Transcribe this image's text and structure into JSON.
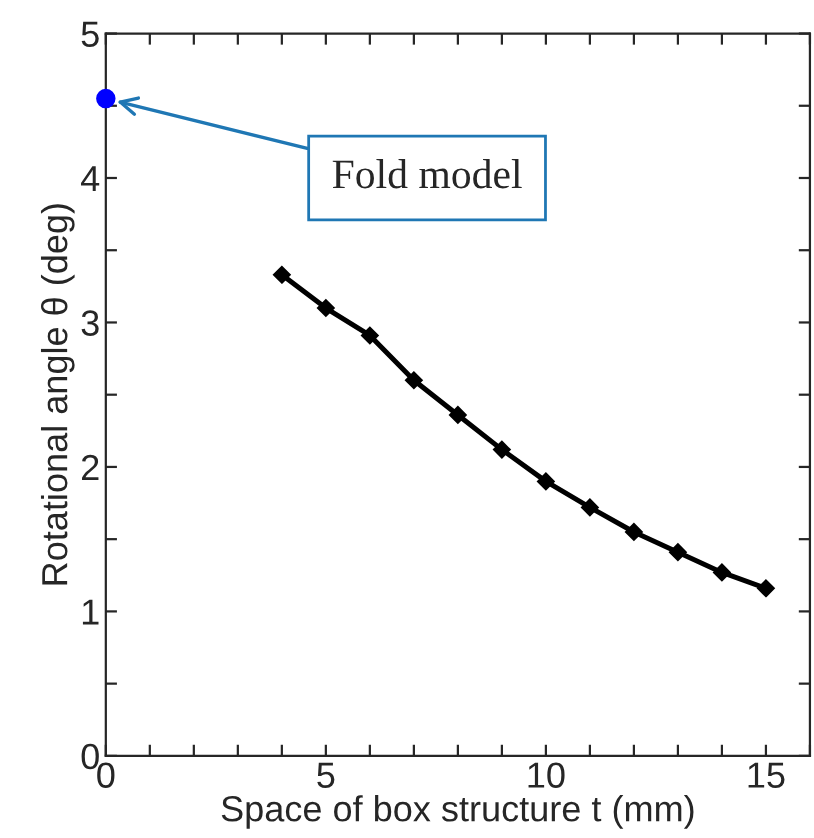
{
  "chart_data": {
    "type": "line",
    "xlabel": "Space of box structure t (mm)",
    "ylabel": "Rotational angle θ (deg)",
    "xlim": [
      0,
      16
    ],
    "ylim": [
      0,
      5
    ],
    "xticks": [
      0,
      {
        "value": 1,
        "label": null
      },
      {
        "value": 2,
        "label": null
      },
      {
        "value": 3,
        "label": null
      },
      {
        "value": 4,
        "label": null
      },
      5,
      {
        "value": 6,
        "label": null
      },
      {
        "value": 7,
        "label": null
      },
      {
        "value": 8,
        "label": null
      },
      {
        "value": 9,
        "label": null
      },
      10,
      {
        "value": 11,
        "label": null
      },
      {
        "value": 12,
        "label": null
      },
      {
        "value": 13,
        "label": null
      },
      {
        "value": 14,
        "label": null
      },
      15,
      {
        "value": 16,
        "label": null
      }
    ],
    "yticks": [
      0,
      {
        "value": 0.5,
        "label": null
      },
      1,
      {
        "value": 1.5,
        "label": null
      },
      2,
      {
        "value": 2.5,
        "label": null
      },
      3,
      {
        "value": 3.5,
        "label": null
      },
      4,
      {
        "value": 4.5,
        "label": null
      },
      5
    ],
    "grid": false,
    "marker": "diamond",
    "line_style": "solid",
    "series": [
      {
        "color": "#000000",
        "x": [
          4,
          5,
          6,
          7,
          8,
          9,
          10,
          11,
          12,
          13,
          14,
          15
        ],
        "values": [
          3.33,
          3.1,
          2.91,
          2.6,
          2.36,
          2.12,
          1.9,
          1.72,
          1.55,
          1.41,
          1.27,
          1.16
        ]
      },
      {
        "type": "scatter",
        "marker": "circle",
        "color": "#0000ff",
        "x": [
          0
        ],
        "values": [
          4.55
        ]
      }
    ],
    "annotations": [
      {
        "text": "Fold model",
        "x": 0,
        "y": 4.55
      }
    ]
  }
}
